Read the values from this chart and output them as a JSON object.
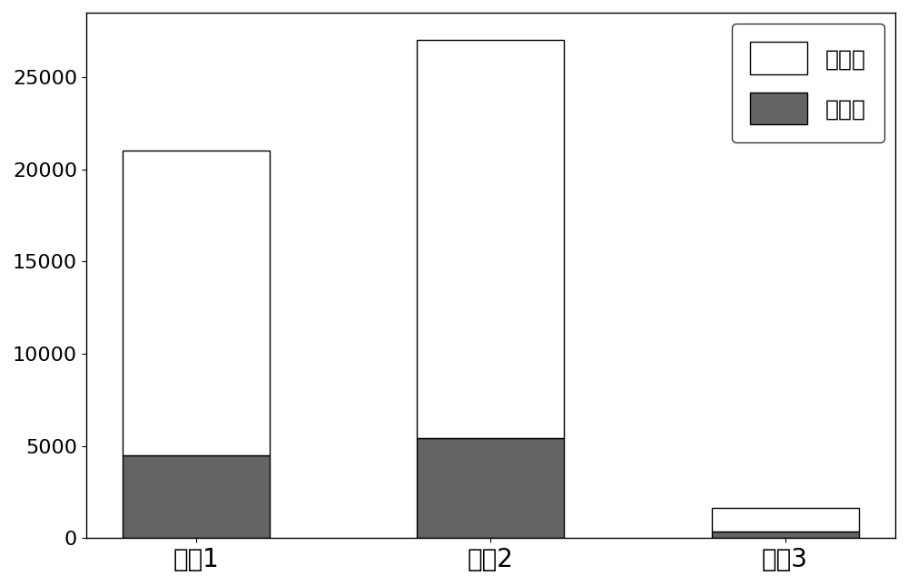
{
  "categories": [
    "岐相1",
    "岐相2",
    "岐相3"
  ],
  "test_values": [
    4500,
    5450,
    380
  ],
  "train_values": [
    16500,
    21550,
    1250
  ],
  "train_color": "#ffffff",
  "test_color": "#646464",
  "train_label": "训练集",
  "test_label": "测试集",
  "train_edgecolor": "#000000",
  "test_edgecolor": "#000000",
  "ylim": [
    0,
    28500
  ],
  "yticks": [
    0,
    5000,
    10000,
    15000,
    20000,
    25000
  ],
  "bar_width": 0.5,
  "background_color": "#ffffff",
  "legend_fontsize": 18,
  "tick_fontsize": 16,
  "xlabel_fontsize": 20
}
